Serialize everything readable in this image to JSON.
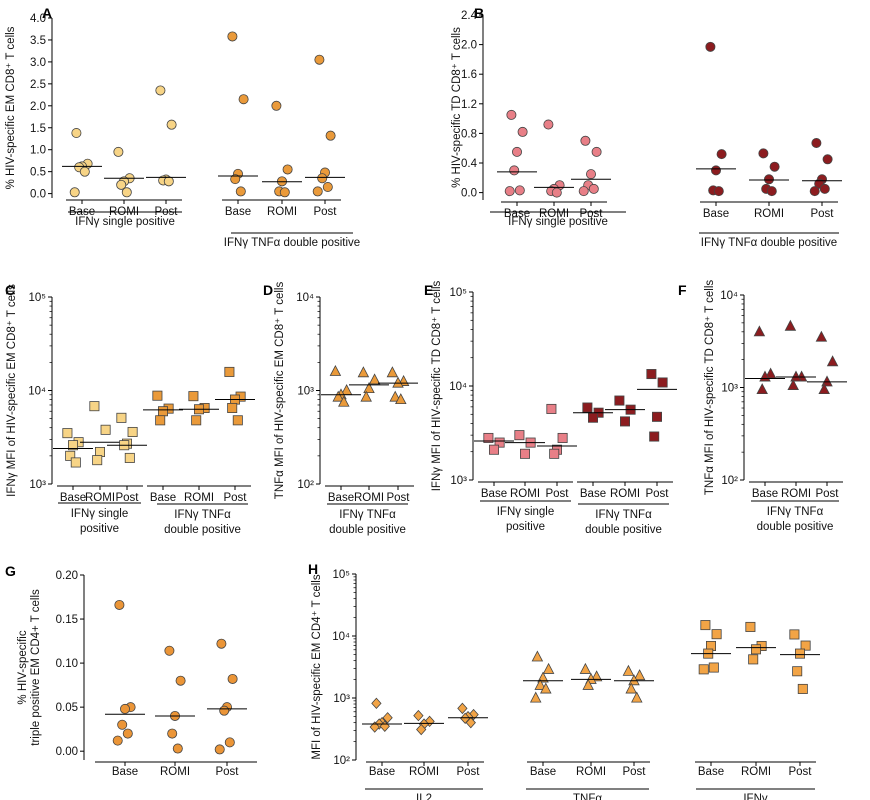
{
  "colors": {
    "ifng_single": "#f7d486",
    "ifng_tnfa": "#ea9a3a",
    "td_single": "#e87f87",
    "td_double": "#8c1c1f",
    "triple": "#eb9537",
    "cd4_mfi": "#f2a446",
    "outline_dark": "#333333"
  },
  "chart_data": [
    {
      "id": "A",
      "type": "scatter",
      "panel_label": "A",
      "ylabel": "% HIV-specific EM CD8⁺ T cells",
      "scale": "linear",
      "ylim": [
        -0.1,
        4.0
      ],
      "yticks": [
        0.0,
        0.5,
        1.0,
        1.5,
        2.0,
        2.5,
        3.0,
        3.5,
        4.0
      ],
      "ytick_labels": [
        "0.0",
        "0.5",
        "1.0",
        "1.5",
        "2.0",
        "2.5",
        "3.0",
        "3.5",
        "4.0"
      ],
      "marker": "circle",
      "groups": [
        {
          "name": "IFNγ single positive",
          "color_key": "ifng_single",
          "categories": [
            {
              "label": "Base",
              "values": [
                1.38,
                0.68,
                0.62,
                0.6,
                0.5,
                0.03
              ],
              "median": 0.62
            },
            {
              "label": "ROMI",
              "values": [
                0.95,
                0.35,
                0.28,
                0.2,
                0.03
              ],
              "median": 0.35
            },
            {
              "label": "Post",
              "values": [
                2.35,
                1.57,
                0.32,
                0.3,
                0.28
              ],
              "median": 0.37
            }
          ]
        },
        {
          "name": "IFNγ TNFα double positive",
          "color_key": "ifng_tnfa",
          "categories": [
            {
              "label": "Base",
              "values": [
                3.58,
                2.15,
                0.45,
                0.33,
                0.05
              ],
              "median": 0.4
            },
            {
              "label": "ROMI",
              "values": [
                2.0,
                0.55,
                0.28,
                0.05,
                0.03
              ],
              "median": 0.27
            },
            {
              "label": "Post",
              "values": [
                3.05,
                1.32,
                0.48,
                0.35,
                0.15,
                0.05
              ],
              "median": 0.37
            }
          ]
        }
      ]
    },
    {
      "id": "B",
      "type": "scatter",
      "panel_label": "B",
      "ylabel": "% HIV-specific TD CD8⁺ T cells",
      "scale": "linear",
      "ylim": [
        -0.1,
        2.4
      ],
      "yticks": [
        0.0,
        0.4,
        0.8,
        1.2,
        1.6,
        2.0,
        2.4
      ],
      "ytick_labels": [
        "0.0",
        "0.4",
        "0.8",
        "1.2",
        "1.6",
        "2.0",
        "2.4"
      ],
      "marker": "circle",
      "groups": [
        {
          "name": "IFNγ single positive",
          "color_key": "td_single",
          "categories": [
            {
              "label": "Base",
              "values": [
                1.05,
                0.82,
                0.55,
                0.3,
                0.03,
                0.02
              ],
              "median": 0.28
            },
            {
              "label": "ROMI",
              "values": [
                0.92,
                0.1,
                0.05,
                0.02,
                0.0
              ],
              "median": 0.07
            },
            {
              "label": "Post",
              "values": [
                0.7,
                0.55,
                0.25,
                0.1,
                0.05,
                0.02
              ],
              "median": 0.18
            }
          ]
        },
        {
          "name": "IFNγ TNFα double positive",
          "color_key": "td_double",
          "categories": [
            {
              "label": "Base",
              "values": [
                1.97,
                0.52,
                0.3,
                0.03,
                0.02
              ],
              "median": 0.32
            },
            {
              "label": "ROMI",
              "values": [
                0.53,
                0.35,
                0.18,
                0.05,
                0.02
              ],
              "median": 0.17
            },
            {
              "label": "Post",
              "values": [
                0.67,
                0.45,
                0.18,
                0.12,
                0.05,
                0.02
              ],
              "median": 0.16
            }
          ]
        }
      ]
    },
    {
      "id": "C",
      "type": "scatter",
      "panel_label": "C",
      "ylabel": "IFNγ MFI of HIV-specific EM CD8⁺ T cells",
      "scale": "log",
      "ylim": [
        1000,
        100000
      ],
      "yticks": [
        1000,
        10000,
        100000
      ],
      "ytick_labels": [
        "10³",
        "10⁴",
        "10⁵"
      ],
      "marker": "square",
      "groups": [
        {
          "name": "IFNγ single positive",
          "color_key": "ifng_single",
          "categories": [
            {
              "label": "Base",
              "values": [
                3500,
                2800,
                2600,
                2000,
                1700
              ],
              "median": 2400
            },
            {
              "label": "ROMI",
              "values": [
                6800,
                3800,
                2200,
                1800
              ],
              "median": 2800
            },
            {
              "label": "Post",
              "values": [
                5100,
                3600,
                2700,
                2600,
                1900
              ],
              "median": 2600
            }
          ]
        },
        {
          "name": "IFNγ TNFα double positive",
          "color_key": "ifng_tnfa",
          "categories": [
            {
              "label": "Base",
              "values": [
                8800,
                6400,
                6000,
                4800
              ],
              "median": 6200
            },
            {
              "label": "ROMI",
              "values": [
                8700,
                6500,
                6300,
                4800
              ],
              "median": 6300
            },
            {
              "label": "Post",
              "values": [
                15800,
                8600,
                8000,
                6500,
                4800
              ],
              "median": 8000
            }
          ]
        }
      ]
    },
    {
      "id": "D",
      "type": "scatter",
      "panel_label": "D",
      "ylabel": "TNFα MFI of HIV-specific EM CD8⁺ T cells",
      "scale": "log",
      "ylim": [
        100,
        10000
      ],
      "yticks": [
        100,
        1000,
        10000
      ],
      "ytick_labels": [
        "10²",
        "10³",
        "10⁴"
      ],
      "marker": "triangle",
      "groups": [
        {
          "name": "IFNγ TNFα double positive",
          "color_key": "ifng_tnfa",
          "categories": [
            {
              "label": "Base",
              "values": [
                1600,
                1000,
                900,
                850,
                750
              ],
              "median": 900
            },
            {
              "label": "ROMI",
              "values": [
                1550,
                1300,
                1050,
                850
              ],
              "median": 1150
            },
            {
              "label": "Post",
              "values": [
                1550,
                1250,
                1200,
                850,
                800
              ],
              "median": 1200
            }
          ]
        }
      ]
    },
    {
      "id": "E",
      "type": "scatter",
      "panel_label": "E",
      "ylabel": "IFNγ MFI of HIV-specific TD CD8⁺ T cells",
      "scale": "log",
      "ylim": [
        1000,
        100000
      ],
      "yticks": [
        1000,
        10000,
        100000
      ],
      "ytick_labels": [
        "10³",
        "10⁴",
        "10⁵"
      ],
      "marker": "square",
      "groups": [
        {
          "name": "IFNγ single positive",
          "color_key": "td_single",
          "categories": [
            {
              "label": "Base",
              "values": [
                2800,
                2500,
                2100
              ],
              "median": 2600
            },
            {
              "label": "ROMI",
              "values": [
                3000,
                2500,
                1900
              ],
              "median": 2500
            },
            {
              "label": "Post",
              "values": [
                5700,
                2800,
                2100,
                1900
              ],
              "median": 2300
            }
          ]
        },
        {
          "name": "IFNγ TNFα double positive",
          "color_key": "td_double",
          "categories": [
            {
              "label": "Base",
              "values": [
                5900,
                5200,
                4600
              ],
              "median": 5200
            },
            {
              "label": "ROMI",
              "values": [
                7000,
                5600,
                4200
              ],
              "median": 5600
            },
            {
              "label": "Post",
              "values": [
                13400,
                10900,
                4700,
                2900
              ],
              "median": 9200
            }
          ]
        }
      ]
    },
    {
      "id": "F",
      "type": "scatter",
      "panel_label": "F",
      "ylabel": "TNFα MFI of HIV-specific TD CD8⁺ T cells",
      "scale": "log",
      "ylim": [
        100,
        10000
      ],
      "yticks": [
        100,
        1000,
        10000
      ],
      "ytick_labels": [
        "10²",
        "10³",
        "10⁴"
      ],
      "marker": "triangle",
      "groups": [
        {
          "name": "IFNγ TNFα double positive",
          "color_key": "td_double",
          "categories": [
            {
              "label": "Base",
              "values": [
                4000,
                1400,
                1300,
                950
              ],
              "median": 1250
            },
            {
              "label": "ROMI",
              "values": [
                4600,
                1300,
                1300,
                1050
              ],
              "median": 1300
            },
            {
              "label": "Post",
              "values": [
                3500,
                1900,
                1150,
                950
              ],
              "median": 1150
            }
          ]
        }
      ]
    },
    {
      "id": "G",
      "type": "scatter",
      "panel_label": "G",
      "ylabel": "% HIV-specific triple positive EM CD4+ T cells",
      "ylabel_lines": [
        "% HIV-specific",
        "triple positive EM CD4+ T cells"
      ],
      "scale": "linear",
      "ylim": [
        -0.01,
        0.2
      ],
      "yticks": [
        0.0,
        0.05,
        0.1,
        0.15,
        0.2
      ],
      "ytick_labels": [
        "0.00",
        "0.05",
        "0.10",
        "0.15",
        "0.20"
      ],
      "marker": "circle",
      "groups": [
        {
          "name": "",
          "color_key": "triple",
          "categories": [
            {
              "label": "Base",
              "values": [
                0.166,
                0.05,
                0.048,
                0.03,
                0.02,
                0.012
              ],
              "median": 0.042
            },
            {
              "label": "ROMI",
              "values": [
                0.114,
                0.08,
                0.04,
                0.02,
                0.003
              ],
              "median": 0.04
            },
            {
              "label": "Post",
              "values": [
                0.122,
                0.082,
                0.05,
                0.046,
                0.01,
                0.002
              ],
              "median": 0.048
            }
          ]
        }
      ]
    },
    {
      "id": "H",
      "type": "scatter",
      "panel_label": "H",
      "ylabel": "MFI of HIV-specific EM CD4⁺ T cells",
      "scale": "log",
      "ylim": [
        100,
        100000
      ],
      "yticks": [
        100,
        1000,
        10000,
        100000
      ],
      "ytick_labels": [
        "10²",
        "10³",
        "10⁴",
        "10⁵"
      ],
      "groups": [
        {
          "name": "IL2",
          "color_key": "cd4_mfi",
          "marker": "diamond",
          "categories": [
            {
              "label": "Base",
              "values": [
                820,
                480,
                400,
                380,
                350,
                340
              ],
              "median": 380
            },
            {
              "label": "ROMI",
              "values": [
                520,
                420,
                380,
                310
              ],
              "median": 390
            },
            {
              "label": "Post",
              "values": [
                680,
                540,
                500,
                470,
                400
              ],
              "median": 480
            }
          ]
        },
        {
          "name": "TNFα",
          "color_key": "cd4_mfi",
          "marker": "triangle",
          "categories": [
            {
              "label": "Base",
              "values": [
                4600,
                2900,
                2100,
                1600,
                1400,
                1000
              ],
              "median": 1900
            },
            {
              "label": "ROMI",
              "values": [
                2900,
                2200,
                2000,
                1600
              ],
              "median": 2000
            },
            {
              "label": "Post",
              "values": [
                2700,
                2300,
                1900,
                1400,
                1000
              ],
              "median": 1900
            }
          ]
        },
        {
          "name": "IFNγ",
          "color_key": "cd4_mfi",
          "marker": "square",
          "categories": [
            {
              "label": "Base",
              "values": [
                15000,
                10700,
                6900,
                5200,
                3100,
                2900
              ],
              "median": 5200
            },
            {
              "label": "ROMI",
              "values": [
                14000,
                6900,
                6100,
                4200
              ],
              "median": 6500
            },
            {
              "label": "Post",
              "values": [
                10600,
                7000,
                5200,
                2700,
                1400
              ],
              "median": 5000
            }
          ]
        }
      ]
    }
  ]
}
